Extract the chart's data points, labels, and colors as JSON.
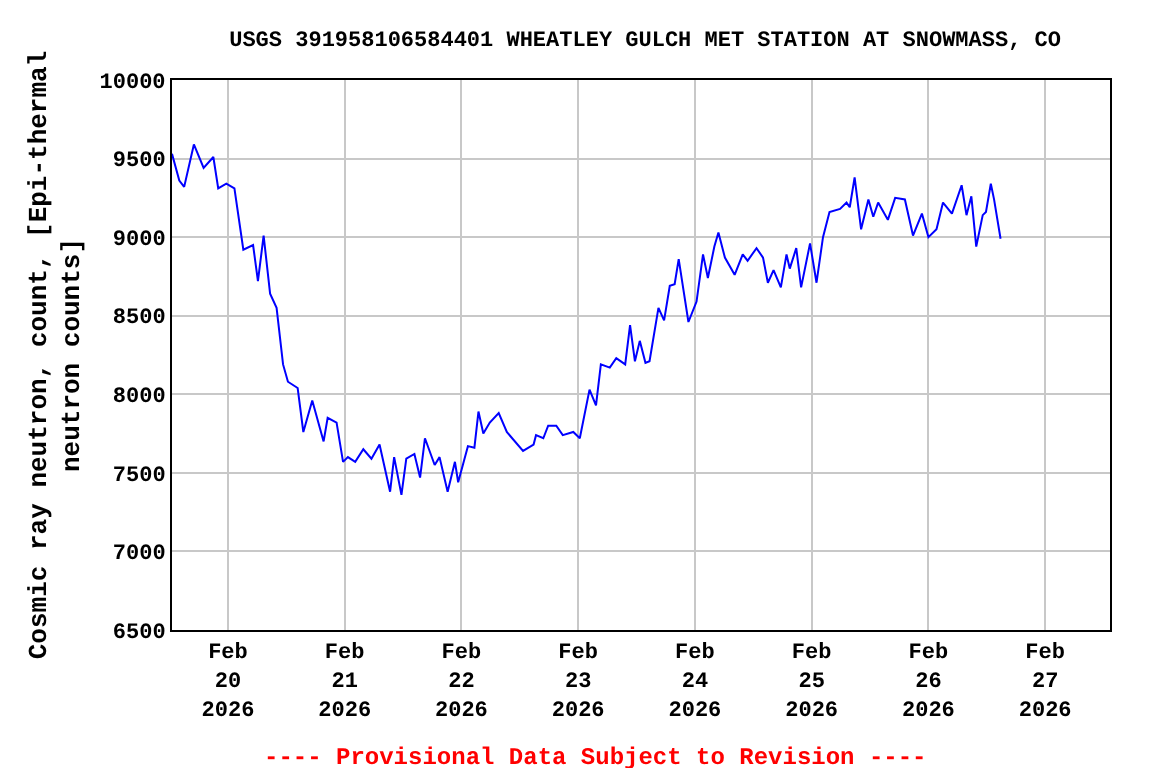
{
  "chart_data": {
    "type": "line",
    "title": "USGS 391958106584401 WHEATLEY GULCH MET STATION AT SNOWMASS, CO",
    "ylabel": "Cosmic ray neutron, count, [Epi-thermal\nneutron counts]",
    "annotations": [
      "---- Provisional Data Subject to Revision ----"
    ],
    "xlim": [
      "2026-02-19T12:30",
      "2026-02-27T13:20"
    ],
    "xticks": [
      {
        "value": "2026-02-20",
        "label": "Feb\n20\n2026"
      },
      {
        "value": "2026-02-21",
        "label": "Feb\n21\n2026"
      },
      {
        "value": "2026-02-22",
        "label": "Feb\n22\n2026"
      },
      {
        "value": "2026-02-23",
        "label": "Feb\n23\n2026"
      },
      {
        "value": "2026-02-24",
        "label": "Feb\n24\n2026"
      },
      {
        "value": "2026-02-25",
        "label": "Feb\n25\n2026"
      },
      {
        "value": "2026-02-26",
        "label": "Feb\n26\n2026"
      },
      {
        "value": "2026-02-27",
        "label": "Feb\n27\n2026"
      }
    ],
    "ylim": [
      6500,
      10000
    ],
    "yticks": [
      6500,
      7000,
      7500,
      8000,
      8500,
      9000,
      9500,
      10000
    ],
    "grid": true,
    "marker": "none",
    "line_style": "solid",
    "x": [
      "2026-02-19T12:30",
      "2026-02-19T14:00",
      "2026-02-19T15:00",
      "2026-02-19T17:00",
      "2026-02-19T19:00",
      "2026-02-19T21:00",
      "2026-02-19T22:00",
      "2026-02-19T23:40",
      "2026-02-20T01:20",
      "2026-02-20T03:10",
      "2026-02-20T05:10",
      "2026-02-20T06:10",
      "2026-02-20T07:20",
      "2026-02-20T08:40",
      "2026-02-20T10:00",
      "2026-02-20T11:20",
      "2026-02-20T12:20",
      "2026-02-20T14:20",
      "2026-02-20T15:30",
      "2026-02-20T17:20",
      "2026-02-20T19:40",
      "2026-02-20T20:30",
      "2026-02-20T22:20",
      "2026-02-20T23:40",
      "2026-02-21T00:40",
      "2026-02-21T02:10",
      "2026-02-21T03:50",
      "2026-02-21T05:30",
      "2026-02-21T07:10",
      "2026-02-21T09:20",
      "2026-02-21T10:10",
      "2026-02-21T11:40",
      "2026-02-21T12:40",
      "2026-02-21T14:20",
      "2026-02-21T15:30",
      "2026-02-21T16:30",
      "2026-02-21T18:30",
      "2026-02-21T19:30",
      "2026-02-21T21:10",
      "2026-02-21T22:40",
      "2026-02-21T23:20",
      "2026-02-22T01:20",
      "2026-02-22T02:40",
      "2026-02-22T03:30",
      "2026-02-22T04:30",
      "2026-02-22T05:50",
      "2026-02-22T07:40",
      "2026-02-22T09:20",
      "2026-02-22T12:40",
      "2026-02-22T14:50",
      "2026-02-22T15:20",
      "2026-02-22T16:50",
      "2026-02-22T17:50",
      "2026-02-22T19:30",
      "2026-02-22T20:50",
      "2026-02-22T23:00",
      "2026-02-23T00:20",
      "2026-02-23T02:20",
      "2026-02-23T03:40",
      "2026-02-23T04:40",
      "2026-02-23T06:30",
      "2026-02-23T07:50",
      "2026-02-23T09:40",
      "2026-02-23T10:40",
      "2026-02-23T11:40",
      "2026-02-23T12:40",
      "2026-02-23T13:50",
      "2026-02-23T14:40",
      "2026-02-23T16:30",
      "2026-02-23T17:40",
      "2026-02-23T18:50",
      "2026-02-23T19:50",
      "2026-02-23T20:40",
      "2026-02-23T21:40",
      "2026-02-23T22:40",
      "2026-02-24T00:20",
      "2026-02-24T01:40",
      "2026-02-24T02:40",
      "2026-02-24T04:00",
      "2026-02-24T04:50",
      "2026-02-24T06:10",
      "2026-02-24T08:10",
      "2026-02-24T09:50",
      "2026-02-24T10:50",
      "2026-02-24T12:40",
      "2026-02-24T14:00",
      "2026-02-24T15:00",
      "2026-02-24T16:10",
      "2026-02-24T17:40",
      "2026-02-24T18:50",
      "2026-02-24T19:30",
      "2026-02-24T20:50",
      "2026-02-24T21:50",
      "2026-02-24T23:40",
      "2026-02-25T01:00",
      "2026-02-25T02:20",
      "2026-02-25T03:40",
      "2026-02-25T05:50",
      "2026-02-25T07:10",
      "2026-02-25T07:50",
      "2026-02-25T08:50",
      "2026-02-25T10:10",
      "2026-02-25T11:40",
      "2026-02-25T12:40",
      "2026-02-25T13:40",
      "2026-02-25T15:40",
      "2026-02-25T17:10",
      "2026-02-25T19:10",
      "2026-02-25T20:50",
      "2026-02-25T22:40",
      "2026-02-26T00:00",
      "2026-02-26T01:40",
      "2026-02-26T03:00",
      "2026-02-26T04:50",
      "2026-02-26T06:50",
      "2026-02-26T07:50",
      "2026-02-26T08:50",
      "2026-02-26T09:50",
      "2026-02-26T11:10",
      "2026-02-26T11:50",
      "2026-02-26T12:50",
      "2026-02-26T13:30",
      "2026-02-26T14:50"
    ],
    "series": [
      {
        "color": "#0000ff",
        "values": [
          9530,
          9360,
          9320,
          9590,
          9440,
          9510,
          9310,
          9340,
          9310,
          8920,
          8950,
          8720,
          9010,
          8640,
          8550,
          8190,
          8080,
          8040,
          7760,
          7960,
          7700,
          7850,
          7820,
          7570,
          7600,
          7570,
          7650,
          7590,
          7680,
          7380,
          7600,
          7360,
          7590,
          7620,
          7470,
          7720,
          7550,
          7600,
          7380,
          7570,
          7440,
          7670,
          7660,
          7890,
          7750,
          7820,
          7880,
          7760,
          7640,
          7680,
          7740,
          7720,
          7800,
          7800,
          7740,
          7760,
          7720,
          8030,
          7930,
          8190,
          8170,
          8230,
          8190,
          8440,
          8210,
          8340,
          8200,
          8210,
          8550,
          8470,
          8690,
          8700,
          8860,
          8660,
          8460,
          8590,
          8890,
          8740,
          8940,
          9030,
          8870,
          8760,
          8890,
          8850,
          8930,
          8870,
          8710,
          8790,
          8680,
          8890,
          8800,
          8930,
          8680,
          8960,
          8710,
          9000,
          9160,
          9180,
          9220,
          9190,
          9380,
          9050,
          9240,
          9130,
          9220,
          9110,
          9250,
          9240,
          9010,
          9150,
          9000,
          9050,
          9220,
          9150,
          9330,
          9140,
          9260,
          8940,
          9140,
          9160,
          9340,
          9240,
          8990
        ]
      }
    ]
  }
}
